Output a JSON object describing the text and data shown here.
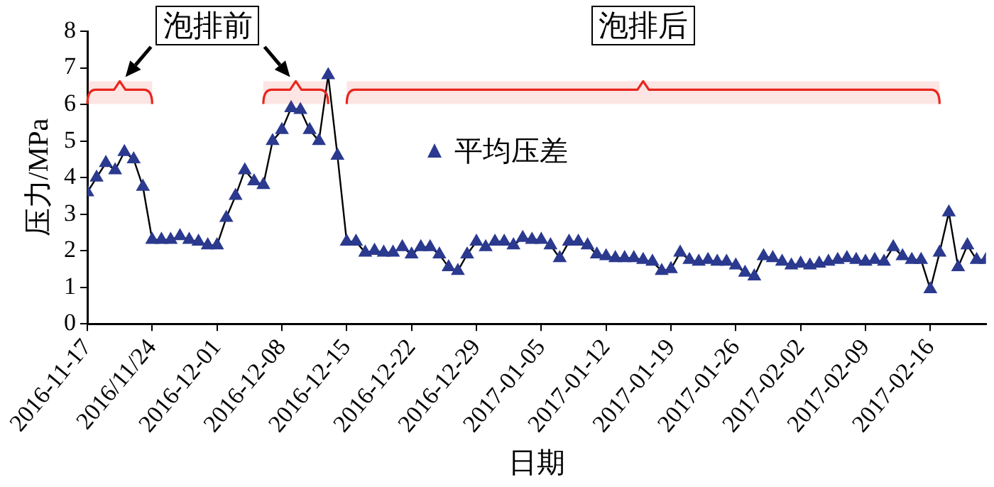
{
  "chart_data": {
    "type": "line",
    "xlabel": "日期",
    "ylabel": "压力/MPa",
    "x": [
      "2016-11-17",
      "2016-11-18",
      "2016-11-19",
      "2016-11-20",
      "2016-11-21",
      "2016-11-22",
      "2016-11-23",
      "2016-11-24",
      "2016-11-25",
      "2016-11-26",
      "2016-11-27",
      "2016-11-28",
      "2016-11-29",
      "2016-11-30",
      "2016-12-01",
      "2016-12-02",
      "2016-12-03",
      "2016-12-04",
      "2016-12-05",
      "2016-12-06",
      "2016-12-07",
      "2016-12-08",
      "2016-12-09",
      "2016-12-10",
      "2016-12-11",
      "2016-12-12",
      "2016-12-13",
      "2016-12-14",
      "2016-12-15",
      "2016-12-16",
      "2016-12-17",
      "2016-12-18",
      "2016-12-19",
      "2016-12-20",
      "2016-12-21",
      "2016-12-22",
      "2016-12-23",
      "2016-12-24",
      "2016-12-25",
      "2016-12-26",
      "2016-12-27",
      "2016-12-28",
      "2016-12-29",
      "2016-12-30",
      "2016-12-31",
      "2017-01-01",
      "2017-01-02",
      "2017-01-03",
      "2017-01-04",
      "2017-01-05",
      "2017-01-06",
      "2017-01-07",
      "2017-01-08",
      "2017-01-09",
      "2017-01-10",
      "2017-01-11",
      "2017-01-12",
      "2017-01-13",
      "2017-01-14",
      "2017-01-15",
      "2017-01-16",
      "2017-01-17",
      "2017-01-18",
      "2017-01-19",
      "2017-01-20",
      "2017-01-21",
      "2017-01-22",
      "2017-01-23",
      "2017-01-24",
      "2017-01-25",
      "2017-01-26",
      "2017-01-27",
      "2017-01-28",
      "2017-01-29",
      "2017-01-30",
      "2017-01-31",
      "2017-02-01",
      "2017-02-02",
      "2017-02-03",
      "2017-02-04",
      "2017-02-05",
      "2017-02-06",
      "2017-02-07",
      "2017-02-08",
      "2017-02-09",
      "2017-02-10",
      "2017-02-11",
      "2017-02-12",
      "2017-02-13",
      "2017-02-14",
      "2017-02-15",
      "2017-02-16",
      "2017-02-17",
      "2017-02-18",
      "2017-02-19",
      "2017-02-20",
      "2017-02-21",
      "2017-02-22"
    ],
    "series": [
      {
        "name": "平均压差",
        "color": "#2b3a8f",
        "values": [
          3.6,
          4.0,
          4.4,
          4.2,
          4.7,
          4.5,
          3.75,
          2.3,
          2.3,
          2.3,
          2.4,
          2.3,
          2.25,
          2.15,
          2.15,
          2.9,
          3.5,
          4.2,
          3.9,
          3.8,
          5.0,
          5.3,
          5.9,
          5.85,
          5.3,
          5.0,
          6.8,
          4.6,
          2.25,
          2.25,
          1.95,
          2.0,
          1.95,
          1.95,
          2.1,
          1.9,
          2.1,
          2.1,
          1.9,
          1.55,
          1.45,
          1.9,
          2.25,
          2.1,
          2.25,
          2.25,
          2.15,
          2.35,
          2.3,
          2.3,
          2.15,
          1.8,
          2.25,
          2.25,
          2.15,
          1.9,
          1.85,
          1.8,
          1.8,
          1.8,
          1.75,
          1.7,
          1.45,
          1.5,
          1.95,
          1.75,
          1.7,
          1.75,
          1.7,
          1.7,
          1.6,
          1.4,
          1.3,
          1.85,
          1.8,
          1.7,
          1.6,
          1.65,
          1.6,
          1.65,
          1.7,
          1.75,
          1.8,
          1.75,
          1.7,
          1.75,
          1.7,
          2.1,
          1.85,
          1.75,
          1.75,
          0.95,
          1.95,
          3.05,
          1.55,
          2.15,
          1.75,
          1.75
        ]
      }
    ],
    "xlim": [
      "2016-11-17",
      "2017-02-22"
    ],
    "xticks": [
      "2016-11-17",
      {
        "value": "2016-11-24",
        "label": "2016/11/24"
      },
      "2016-12-01",
      "2016-12-08",
      "2016-12-15",
      "2016-12-22",
      "2016-12-29",
      "2017-01-05",
      "2017-01-12",
      "2017-01-19",
      "2017-01-26",
      "2017-02-02",
      "2017-02-09",
      "2017-02-16"
    ],
    "ylim": [
      0,
      8
    ],
    "yticks": [
      0,
      1,
      2,
      3,
      4,
      5,
      6,
      7,
      8
    ],
    "bands": [
      {
        "axis": "x",
        "from": "2016-11-17",
        "to": "2016-11-24",
        "label": "泡排前",
        "color": "#e8261c"
      },
      {
        "axis": "x",
        "from": "2016-12-06",
        "to": "2016-12-13",
        "color": "#e8261c"
      },
      {
        "axis": "x",
        "from": "2016-12-15",
        "to": "2017-02-17",
        "label": "泡排后",
        "color": "#e8261c"
      }
    ],
    "grid": false,
    "legend": "center",
    "marker": "triangle",
    "line_style": "solid"
  }
}
